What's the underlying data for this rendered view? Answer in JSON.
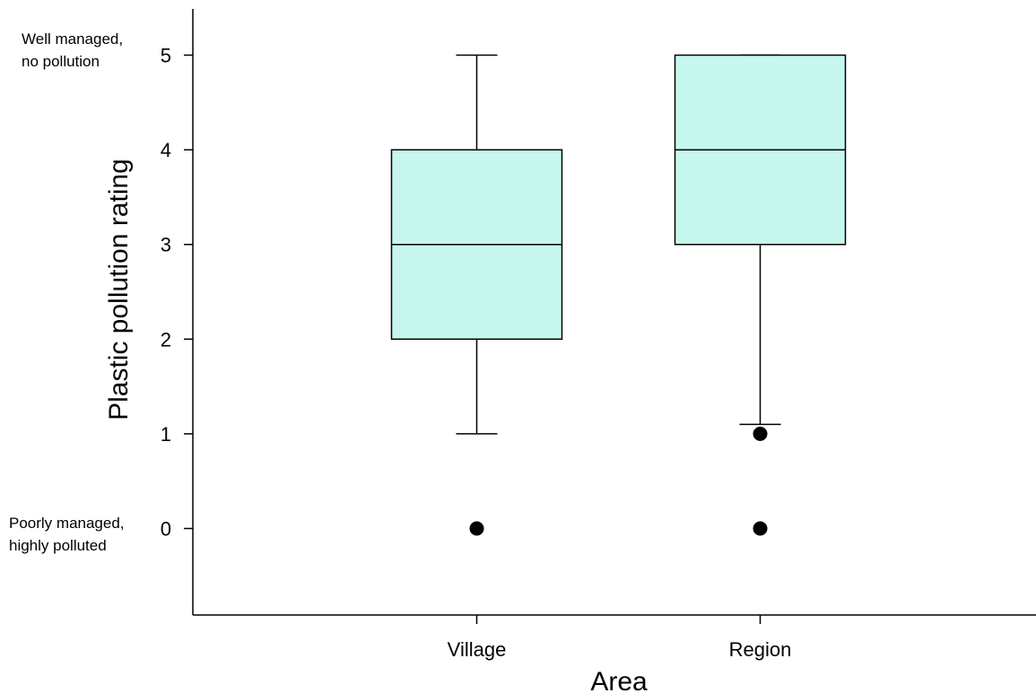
{
  "chart_data": {
    "type": "box",
    "xlabel": "Area",
    "ylabel": "Plastic pollution rating",
    "categories": [
      "Village",
      "Region"
    ],
    "ylim": [
      -0.9,
      5.5
    ],
    "yticks": [
      0,
      1,
      2,
      3,
      4,
      5
    ],
    "grid": false,
    "annotations": {
      "top": [
        "Well managed,",
        "no pollution"
      ],
      "bottom": [
        "Poorly managed,",
        "highly polluted"
      ]
    },
    "boxes": [
      {
        "category": "Village",
        "whisker_low": 1,
        "q1": 2,
        "median": 3,
        "q3": 4,
        "whisker_high": 5,
        "outliers": [
          0
        ]
      },
      {
        "category": "Region",
        "whisker_low": 1.1,
        "q1": 3,
        "median": 4,
        "q3": 5,
        "whisker_high": 5,
        "outliers": [
          1,
          0
        ]
      }
    ],
    "colors": {
      "box_fill": "#c6f6ee",
      "stroke": "#000000",
      "outlier": "#000000"
    }
  }
}
